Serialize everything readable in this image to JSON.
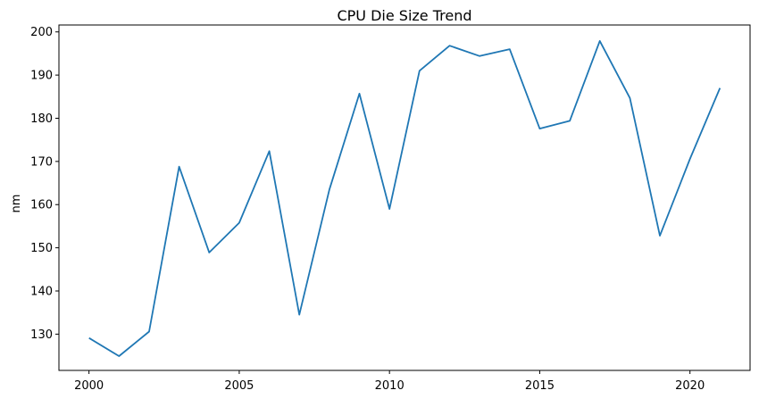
{
  "chart_data": {
    "type": "line",
    "title": "CPU Die Size Trend",
    "xlabel": "",
    "ylabel": "nm",
    "xlim": [
      1999,
      2022
    ],
    "ylim": [
      121.6,
      201.6
    ],
    "grid": false,
    "x_ticks": [
      2000,
      2005,
      2010,
      2015,
      2020
    ],
    "y_ticks": [
      130,
      140,
      150,
      160,
      170,
      180,
      190,
      200
    ],
    "series": [
      {
        "color": "#1f77b4",
        "x": [
          2000,
          2001,
          2002,
          2003,
          2004,
          2005,
          2006,
          2007,
          2008,
          2009,
          2010,
          2011,
          2012,
          2013,
          2014,
          2015,
          2016,
          2017,
          2018,
          2019,
          2020,
          2021
        ],
        "values": [
          129.1,
          124.9,
          130.6,
          168.8,
          148.9,
          155.8,
          172.4,
          134.5,
          163.5,
          185.7,
          159.0,
          191.0,
          196.8,
          194.4,
          196.0,
          177.6,
          179.4,
          197.9,
          184.7,
          152.8,
          170.6,
          187.0
        ]
      }
    ]
  }
}
